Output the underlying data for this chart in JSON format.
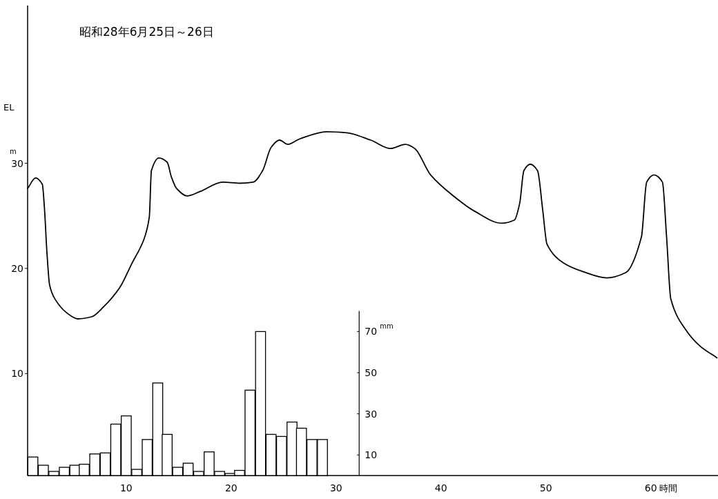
{
  "chart_data": {
    "type": "line",
    "title": "昭和28年6月25日～26日",
    "xlabel": "時間",
    "ylabel": "EL",
    "y2label": "mm",
    "annotations": [
      "m"
    ],
    "xlim": [
      0.6,
      66.4
    ],
    "xticks": [
      10,
      20,
      30,
      40,
      50,
      60
    ],
    "ylim": [
      0.3,
      45
    ],
    "yticks": [
      10,
      20,
      30
    ],
    "y2lim": [
      0,
      228.5
    ],
    "y2ticks": [
      10,
      30,
      50,
      70
    ],
    "series": [
      {
        "color": "#000000",
        "x": [
          0.6,
          1.36,
          2.0,
          2.2,
          2.45,
          2.7,
          3.2,
          4.3,
          5.4,
          6.7,
          7.8,
          9.4,
          10.5,
          11.7,
          12.2,
          12.4,
          13.1,
          13.9,
          14.3,
          14.8,
          15.8,
          17.0,
          19.2,
          20.8,
          22.1,
          23.0,
          23.8,
          24.6,
          25.4,
          26.5,
          29.1,
          31.0,
          33.3,
          35.2,
          36.6,
          37.5,
          39.0,
          41.3,
          43.1,
          45.8,
          47.0,
          47.5,
          47.9,
          48.5,
          49.2,
          49.7,
          50.1,
          51.7,
          53.5,
          55.8,
          57.6,
          59.1,
          59.6,
          60.3,
          61.1,
          61.5,
          61.9,
          63.3,
          64.7,
          66.3
        ],
        "values": [
          27.6,
          28.6,
          28.0,
          25.8,
          21.4,
          18.4,
          17.1,
          15.8,
          15.2,
          15.4,
          16.3,
          18.2,
          20.4,
          22.8,
          24.9,
          29.3,
          30.5,
          30.1,
          28.7,
          27.6,
          26.9,
          27.3,
          28.2,
          28.1,
          28.2,
          29.3,
          31.5,
          32.2,
          31.8,
          32.3,
          33.0,
          32.9,
          32.2,
          31.4,
          31.8,
          31.4,
          28.9,
          26.8,
          25.5,
          24.3,
          24.6,
          26.2,
          29.3,
          29.9,
          29.3,
          25.5,
          22.3,
          20.5,
          19.7,
          19.1,
          19.6,
          23.0,
          28.2,
          28.9,
          28.2,
          23.0,
          17.1,
          14.2,
          12.6,
          11.5
        ]
      },
      {
        "type": "bar",
        "axis": "y2",
        "color": "#ffffff",
        "x": [
          1.1,
          2.1,
          3.1,
          4.1,
          5.1,
          6.0,
          7.0,
          8.0,
          9.0,
          10.0,
          11.0,
          12.0,
          13.0,
          13.9,
          14.9,
          15.9,
          16.9,
          17.9,
          18.9,
          19.9,
          20.8,
          21.8,
          22.8,
          23.8,
          24.8,
          25.8,
          26.7,
          27.7,
          28.7
        ],
        "values": [
          9,
          5,
          2,
          4,
          5,
          5.5,
          10.5,
          11,
          25,
          29,
          3,
          17.5,
          45,
          20,
          4,
          6,
          2,
          11.5,
          2,
          1,
          2.5,
          41.5,
          70,
          20,
          19,
          26,
          23,
          17.5,
          17.5
        ]
      }
    ]
  }
}
